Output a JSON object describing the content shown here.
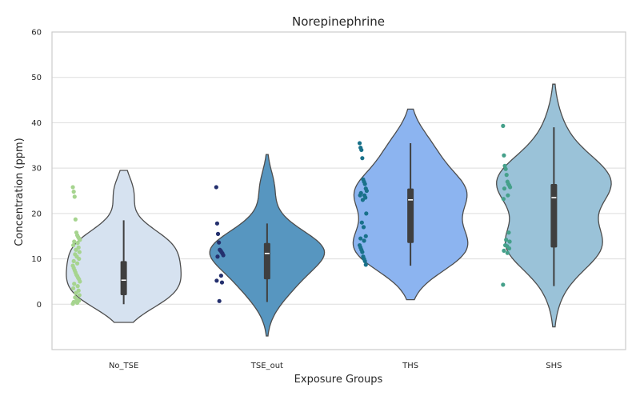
{
  "chart_data": {
    "type": "violin",
    "title": "Norepinephrine",
    "xlabel": "Exposure Groups",
    "ylabel": "Concentration (ppm)",
    "ylim": [
      -10,
      60
    ],
    "yticks": [
      0,
      10,
      20,
      30,
      40,
      50,
      60
    ],
    "grid": "horizontal",
    "categories": [
      "No_TSE",
      "TSE_out",
      "THS",
      "SHS"
    ],
    "groups": [
      {
        "name": "No_TSE",
        "fill": "#d6e2f0",
        "point_color": "#a6d48f",
        "kde_range": [
          -4,
          29.5
        ],
        "box": {
          "q1": 2,
          "median": 5.3,
          "q3": 9.5,
          "whisker_low": 0,
          "whisker_high": 18.5
        },
        "points": [
          25.8,
          24.8,
          23.7,
          18.7,
          15.8,
          15.2,
          14.8,
          14.5,
          14.2,
          13.8,
          13.5,
          13,
          12.5,
          12,
          11.5,
          11,
          10.5,
          10,
          9.5,
          9,
          8.5,
          8,
          7.5,
          7,
          6.5,
          6.2,
          5.8,
          5.5,
          5,
          4.5,
          4,
          3.5,
          3,
          2.5,
          2,
          1.5,
          1,
          0.8,
          0.5,
          0.3,
          0.1
        ]
      },
      {
        "name": "TSE_out",
        "fill": "#5796c0",
        "point_color": "#24306e",
        "kde_range": [
          -7,
          33
        ],
        "box": {
          "q1": 5.5,
          "median": 11.2,
          "q3": 13.5,
          "whisker_low": 0.5,
          "whisker_high": 17.8
        },
        "points": [
          25.8,
          17.8,
          15.5,
          13.6,
          12,
          11.8,
          11.5,
          11.2,
          10.8,
          10.5,
          6.3,
          5.2,
          4.8,
          0.7
        ]
      },
      {
        "name": "THS",
        "fill": "#8cb4f0",
        "point_color": "#19718a",
        "kde_range": [
          1,
          43
        ],
        "box": {
          "q1": 13.5,
          "median": 23,
          "q3": 25.5,
          "whisker_low": 8.5,
          "whisker_high": 35.5
        },
        "points": [
          35.5,
          34.5,
          34,
          32.2,
          27.5,
          27,
          26.5,
          25.5,
          25,
          24.5,
          24,
          24,
          23.5,
          23,
          20,
          18,
          17,
          15,
          14.5,
          14,
          13,
          12.5,
          12,
          11.5,
          10.5,
          10,
          9.5,
          8.7
        ]
      },
      {
        "name": "SHS",
        "fill": "#9ac2d8",
        "point_color": "#45a08a",
        "kde_range": [
          -5,
          48.5
        ],
        "box": {
          "q1": 12.5,
          "median": 23.5,
          "q3": 26.5,
          "whisker_low": 4,
          "whisker_high": 39
        },
        "points": [
          39.3,
          32.8,
          30.5,
          29.8,
          28.5,
          27,
          26.5,
          26.2,
          25.8,
          25.5,
          24,
          23.2,
          15.8,
          14.2,
          13.8,
          13,
          12.8,
          12.3,
          11.8,
          11.3,
          4.3
        ]
      }
    ]
  }
}
